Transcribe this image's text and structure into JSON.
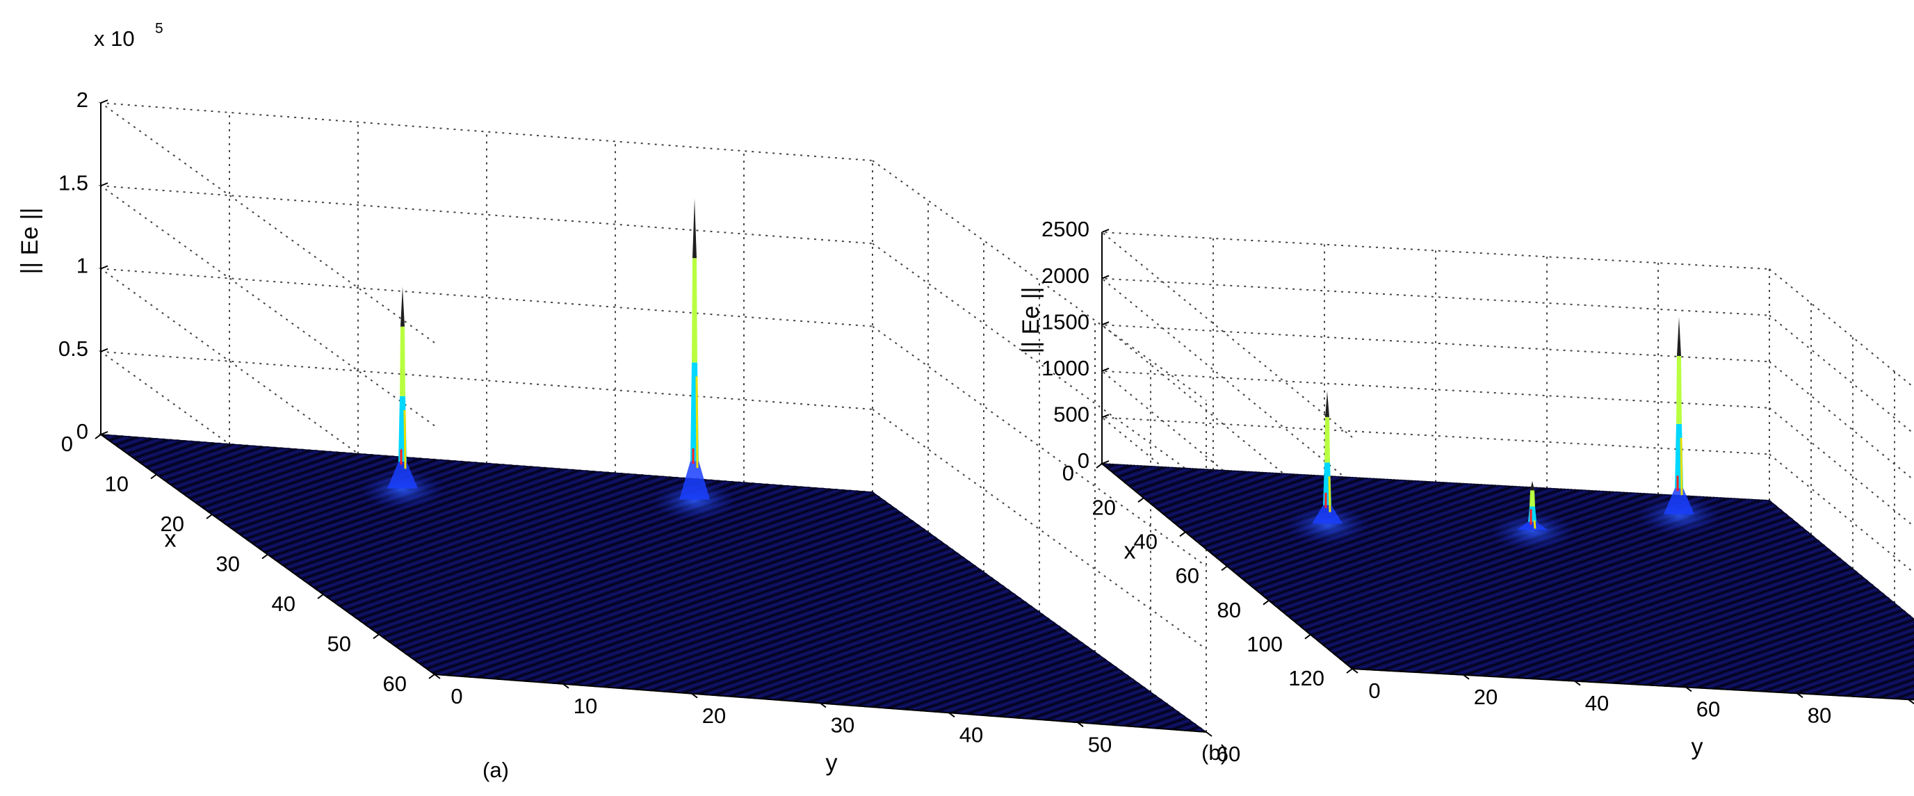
{
  "chart_data": [
    {
      "type": "surface",
      "caption": "(a)",
      "xlabel": "x",
      "ylabel": "y",
      "zlabel": "|| Ee ||",
      "z_exponent_base": "x 10",
      "z_exponent_power": "5",
      "xlim": [
        0,
        60
      ],
      "ylim": [
        0,
        60
      ],
      "zlim": [
        0,
        200000
      ],
      "xticks": [
        0,
        10,
        20,
        30,
        40,
        50,
        60
      ],
      "yticks": [
        0,
        10,
        20,
        30,
        40,
        50,
        60
      ],
      "zticks": [
        0,
        50000,
        100000,
        150000,
        200000
      ],
      "zticklabels": [
        "0",
        "0.5",
        "1",
        "1.5",
        "2"
      ],
      "colormap": [
        "#000080",
        "#0000ff",
        "#00ffff",
        "#ffff00",
        "#ff0000"
      ],
      "grid": true,
      "peaks": [
        {
          "x": 8,
          "y": 20,
          "z": 120000
        },
        {
          "x": 5,
          "y": 44,
          "z": 180000
        }
      ]
    },
    {
      "type": "surface",
      "caption": "(b)",
      "xlabel": "x",
      "ylabel": "y",
      "zlabel": "|| Ee ||",
      "xlim": [
        0,
        120
      ],
      "ylim": [
        0,
        120
      ],
      "zlim": [
        0,
        2500
      ],
      "xticks": [
        0,
        20,
        40,
        60,
        80,
        100,
        120
      ],
      "yticks": [
        0,
        20,
        40,
        60,
        80,
        100,
        120
      ],
      "zticks": [
        0,
        500,
        1000,
        1500,
        2000,
        2500
      ],
      "zticklabels": [
        "0",
        "500",
        "1000",
        "1500",
        "2000",
        "2500"
      ],
      "colormap": [
        "#000080",
        "#0000ff",
        "#00ffff",
        "#ffff00",
        "#ff0000"
      ],
      "grid": true,
      "peaks": [
        {
          "x": 28,
          "y": 30,
          "z": 1400
        },
        {
          "x": 25,
          "y": 68,
          "z": 500
        },
        {
          "x": 10,
          "y": 100,
          "z": 2100
        }
      ]
    }
  ]
}
